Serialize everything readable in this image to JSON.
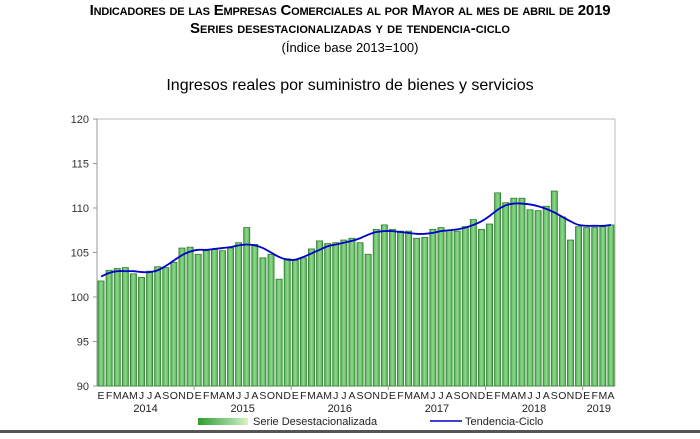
{
  "header": {
    "title_line1": "Indicadores de las Empresas Comerciales al por Mayor al mes de abril de 2019",
    "title_line2": "Series desestacionalizadas y de tendencia-ciclo",
    "subtitle": "(Índice base 2013=100)"
  },
  "colors": {
    "bar_fill": "#5cc05c",
    "bar_stroke": "#2e7d2e",
    "trend_line": "#0000cc",
    "axis": "#999999"
  },
  "chart_data": {
    "type": "bar",
    "title": "Ingresos reales por suministro de bienes y servicios",
    "xlabel": "",
    "ylabel": "",
    "ylim": [
      90,
      120
    ],
    "yticks": [
      90,
      95,
      100,
      105,
      110,
      115,
      120
    ],
    "grid": false,
    "legend_position": "bottom",
    "month_labels": [
      "E",
      "F",
      "M",
      "A",
      "M",
      "J",
      "J",
      "A",
      "S",
      "O",
      "N",
      "D"
    ],
    "years": [
      {
        "label": "2014",
        "months": 12
      },
      {
        "label": "2015",
        "months": 12
      },
      {
        "label": "2016",
        "months": 12
      },
      {
        "label": "2017",
        "months": 12
      },
      {
        "label": "2018",
        "months": 12
      },
      {
        "label": "2019",
        "months": 4
      }
    ],
    "categories": [
      "2014-01",
      "2014-02",
      "2014-03",
      "2014-04",
      "2014-05",
      "2014-06",
      "2014-07",
      "2014-08",
      "2014-09",
      "2014-10",
      "2014-11",
      "2014-12",
      "2015-01",
      "2015-02",
      "2015-03",
      "2015-04",
      "2015-05",
      "2015-06",
      "2015-07",
      "2015-08",
      "2015-09",
      "2015-10",
      "2015-11",
      "2015-12",
      "2016-01",
      "2016-02",
      "2016-03",
      "2016-04",
      "2016-05",
      "2016-06",
      "2016-07",
      "2016-08",
      "2016-09",
      "2016-10",
      "2016-11",
      "2016-12",
      "2017-01",
      "2017-02",
      "2017-03",
      "2017-04",
      "2017-05",
      "2017-06",
      "2017-07",
      "2017-08",
      "2017-09",
      "2017-10",
      "2017-11",
      "2017-12",
      "2018-01",
      "2018-02",
      "2018-03",
      "2018-04",
      "2018-05",
      "2018-06",
      "2018-07",
      "2018-08",
      "2018-09",
      "2018-10",
      "2018-11",
      "2018-12",
      "2019-01",
      "2019-02",
      "2019-03",
      "2019-04"
    ],
    "series": [
      {
        "name": "Serie Desestacionalizada",
        "type": "bar",
        "values": [
          101.8,
          103.0,
          103.2,
          103.3,
          102.6,
          102.2,
          102.9,
          103.4,
          103.3,
          103.9,
          105.5,
          105.6,
          104.8,
          105.2,
          105.4,
          105.2,
          105.5,
          106.1,
          107.8,
          105.9,
          104.4,
          104.8,
          102.0,
          104.3,
          104.1,
          104.4,
          105.4,
          106.3,
          106.0,
          106.1,
          106.4,
          106.6,
          106.1,
          104.8,
          107.6,
          108.1,
          107.6,
          107.4,
          107.4,
          106.6,
          106.7,
          107.6,
          107.8,
          107.5,
          107.4,
          107.9,
          108.7,
          107.6,
          108.2,
          111.7,
          110.6,
          111.1,
          111.1,
          109.8,
          109.7,
          110.2,
          111.9,
          109.0,
          106.4,
          107.9,
          107.8,
          107.8,
          107.9,
          108.1
        ]
      },
      {
        "name": "Tendencia-Ciclo",
        "type": "line",
        "values": [
          102.3,
          102.7,
          102.9,
          102.9,
          102.9,
          102.8,
          102.8,
          103.0,
          103.5,
          104.1,
          104.7,
          105.1,
          105.3,
          105.3,
          105.4,
          105.5,
          105.6,
          105.8,
          105.9,
          105.8,
          105.5,
          105.0,
          104.5,
          104.2,
          104.2,
          104.5,
          104.9,
          105.3,
          105.7,
          105.9,
          106.1,
          106.3,
          106.6,
          107.0,
          107.3,
          107.4,
          107.4,
          107.3,
          107.2,
          107.1,
          107.1,
          107.2,
          107.4,
          107.5,
          107.6,
          107.8,
          108.1,
          108.5,
          109.1,
          109.8,
          110.3,
          110.5,
          110.5,
          110.4,
          110.2,
          109.9,
          109.5,
          109.0,
          108.5,
          108.1,
          108.0,
          108.0,
          108.0,
          108.1
        ]
      }
    ]
  }
}
